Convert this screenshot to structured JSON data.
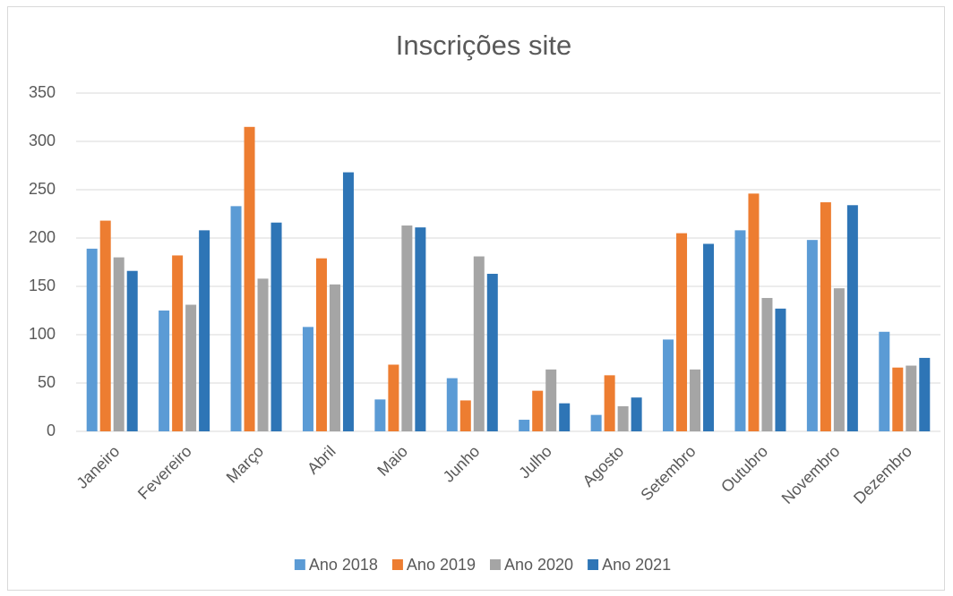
{
  "chart_data": {
    "type": "bar",
    "title": "Inscrições site",
    "categories": [
      "Janeiro",
      "Fevereiro",
      "Março",
      "Abril",
      "Maio",
      "Junho",
      "Julho",
      "Agosto",
      "Setembro",
      "Outubro",
      "Novembro",
      "Dezembro"
    ],
    "series": [
      {
        "name": "Ano 2018",
        "color": "#5b9bd5",
        "values": [
          189,
          125,
          233,
          108,
          33,
          55,
          12,
          17,
          95,
          208,
          198,
          103
        ]
      },
      {
        "name": "Ano 2019",
        "color": "#ed7d31",
        "values": [
          218,
          182,
          315,
          179,
          69,
          32,
          42,
          58,
          205,
          246,
          237,
          66
        ]
      },
      {
        "name": "Ano 2020",
        "color": "#a5a5a5",
        "values": [
          180,
          131,
          158,
          152,
          213,
          181,
          64,
          26,
          64,
          138,
          148,
          68
        ]
      },
      {
        "name": "Ano 2021",
        "color": "#2e75b6",
        "values": [
          166,
          208,
          216,
          268,
          211,
          163,
          29,
          35,
          194,
          127,
          234,
          76
        ]
      }
    ],
    "ylim": [
      0,
      350
    ],
    "yticks": [
      0,
      50,
      100,
      150,
      200,
      250,
      300,
      350
    ],
    "grid": true,
    "legend": "bottom"
  }
}
